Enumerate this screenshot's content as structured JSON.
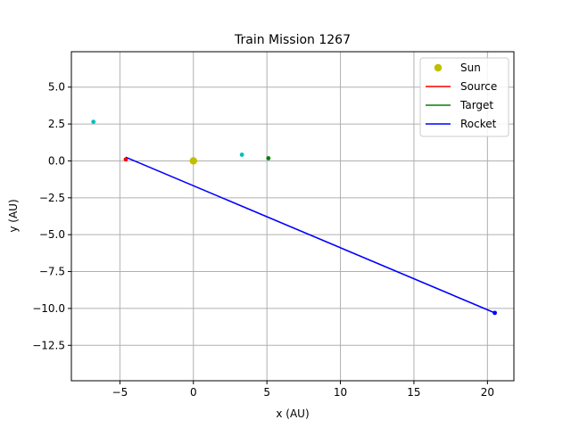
{
  "chart_data": {
    "type": "scatter",
    "title": "Train Mission 1267",
    "xlabel": "x (AU)",
    "ylabel": "y (AU)",
    "xlim": [
      -8.3,
      21.8
    ],
    "ylim": [
      -14.9,
      7.4
    ],
    "xticks": [
      -5,
      0,
      5,
      10,
      15,
      20
    ],
    "xtick_labels": [
      "−5",
      "0",
      "5",
      "10",
      "15",
      "20"
    ],
    "yticks": [
      5.0,
      2.5,
      0.0,
      -2.5,
      -5.0,
      -7.5,
      -10.0,
      -12.5
    ],
    "ytick_labels": [
      "5.0",
      "2.5",
      "0.0",
      "−2.5",
      "−5.0",
      "−7.5",
      "−10.0",
      "−12.5"
    ],
    "grid": true,
    "legend_position": "top-right",
    "series": [
      {
        "name": "Sun",
        "kind": "marker",
        "color": "#bfbf00",
        "points": [
          [
            0,
            0
          ]
        ]
      },
      {
        "name": "Source",
        "kind": "line",
        "color": "#ff0000",
        "points": [
          [
            -4.6,
            0.1
          ]
        ]
      },
      {
        "name": "Target",
        "kind": "line",
        "color": "#008000",
        "points": [
          [
            5.1,
            0.18
          ]
        ]
      },
      {
        "name": "Rocket",
        "kind": "line",
        "color": "#0000ff",
        "points": [
          [
            -4.6,
            0.25
          ],
          [
            20.5,
            -10.3
          ]
        ]
      }
    ],
    "extra_points": [
      {
        "color": "#00bfbf",
        "x": -6.8,
        "y": 2.65
      },
      {
        "color": "#00bfbf",
        "x": 3.3,
        "y": 0.42
      },
      {
        "color": "#ff0000",
        "x": -4.6,
        "y": 0.1
      },
      {
        "color": "#008000",
        "x": 5.1,
        "y": 0.18
      },
      {
        "color": "#0000ff",
        "x": 20.5,
        "y": -10.3
      }
    ]
  }
}
